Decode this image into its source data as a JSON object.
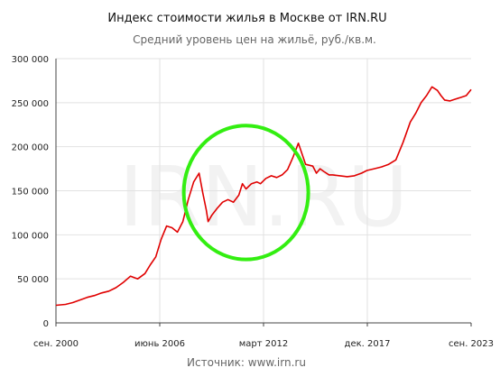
{
  "chart_data": {
    "type": "line",
    "title": "Индекс стоимости жилья в Москве от IRN.RU",
    "subtitle": "Средний уровень цен на жильё, руб./кв.м.",
    "watermark": "IRN.RU",
    "source": "Источник: www.irn.ru",
    "x_ticks": [
      "сен. 2000",
      "июнь 2006",
      "март 2012",
      "дек. 2017",
      "сен. 2023"
    ],
    "y_ticks": [
      "0",
      "50 000",
      "100 000",
      "150 000",
      "200 000",
      "250 000",
      "300 000"
    ],
    "ylim": [
      0,
      300000
    ],
    "xlim": [
      2000.67,
      2023.67
    ],
    "grid": true,
    "line_color": "#e00000",
    "highlight_color": "#33ee11",
    "highlight": {
      "center": [
        2011.2,
        148000
      ],
      "rx_years": 3.45,
      "ry_value": 76000
    },
    "series": [
      {
        "x": [
          2000.67,
          2001.2,
          2001.6,
          2002.0,
          2002.4,
          2002.8,
          2003.2,
          2003.6,
          2004.0,
          2004.4,
          2004.8,
          2005.2,
          2005.6,
          2005.9,
          2006.2,
          2006.5,
          2006.8,
          2007.1,
          2007.4,
          2007.7,
          2008.0,
          2008.3,
          2008.6,
          2008.8,
          2009.0,
          2009.1,
          2009.3,
          2009.6,
          2009.9,
          2010.2,
          2010.5,
          2010.8,
          2011.0,
          2011.2,
          2011.5,
          2011.8,
          2012.0,
          2012.3,
          2012.6,
          2012.9,
          2013.2,
          2013.5,
          2013.8,
          2014.1,
          2014.5,
          2014.9,
          2015.1,
          2015.3,
          2015.5,
          2015.8,
          2016.0,
          2016.4,
          2016.8,
          2017.2,
          2017.6,
          2017.9,
          2018.3,
          2018.7,
          2019.1,
          2019.5,
          2019.9,
          2020.3,
          2020.6,
          2020.9,
          2021.2,
          2021.5,
          2021.8,
          2022.0,
          2022.2,
          2022.5,
          2022.8,
          2023.1,
          2023.4,
          2023.67
        ],
        "y": [
          20000,
          21000,
          23000,
          26000,
          29000,
          31000,
          34000,
          36000,
          40000,
          46000,
          53000,
          50000,
          56000,
          66000,
          75000,
          95000,
          110000,
          108000,
          103000,
          115000,
          140000,
          160000,
          170000,
          148000,
          128000,
          115000,
          122000,
          130000,
          137000,
          140000,
          137000,
          145000,
          158000,
          152000,
          158000,
          160000,
          158000,
          164000,
          167000,
          165000,
          168000,
          174000,
          188000,
          204000,
          180000,
          178000,
          170000,
          175000,
          172000,
          168000,
          168000,
          167000,
          166000,
          167000,
          170000,
          173000,
          175000,
          177000,
          180000,
          185000,
          205000,
          228000,
          238000,
          250000,
          258000,
          268000,
          264000,
          258000,
          253000,
          252000,
          254000,
          256000,
          258000,
          265000
        ]
      }
    ]
  }
}
